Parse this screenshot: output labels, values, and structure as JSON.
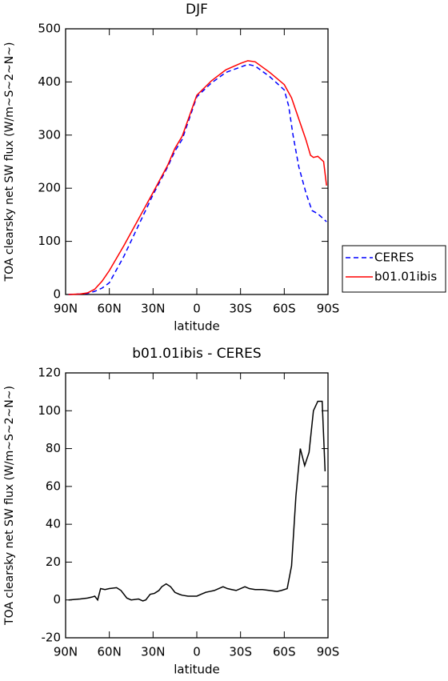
{
  "chart_data": [
    {
      "type": "line",
      "title": "DJF",
      "xlabel": "latitude",
      "ylabel": "TOA clearsky net SW flux (W/m~S~2~N~)",
      "xlim": [
        90,
        -90
      ],
      "xticks": [
        {
          "value": 90,
          "label": "90N"
        },
        {
          "value": 60,
          "label": "60N"
        },
        {
          "value": 30,
          "label": "30N"
        },
        0,
        {
          "value": -30,
          "label": "30S"
        },
        {
          "value": -60,
          "label": "60S"
        },
        {
          "value": -90,
          "label": "90S"
        }
      ],
      "ylim": [
        0,
        500
      ],
      "yticks": [
        0,
        100,
        200,
        300,
        400,
        500
      ],
      "legend": "outside-right",
      "series": [
        {
          "name": "CERES",
          "color": "#0000ff",
          "dash": "dashed",
          "x": [
            88,
            80,
            75,
            70,
            65,
            60,
            50,
            40,
            30,
            20,
            15,
            10,
            0,
            -10,
            -20,
            -30,
            -35,
            -40,
            -50,
            -60,
            -63,
            -66,
            -70,
            -75,
            -79,
            -83,
            -89
          ],
          "values": [
            0,
            1,
            2,
            6,
            12,
            22,
            72,
            130,
            188,
            240,
            270,
            292,
            372,
            398,
            418,
            428,
            433,
            430,
            410,
            385,
            355,
            300,
            240,
            190,
            158,
            152,
            137
          ]
        },
        {
          "name": "b01.01ibis",
          "color": "#ff0000",
          "dash": "solid",
          "x": [
            88,
            80,
            75,
            70,
            65,
            60,
            50,
            40,
            30,
            20,
            15,
            10,
            0,
            -10,
            -20,
            -30,
            -35,
            -40,
            -50,
            -60,
            -65,
            -70,
            -75,
            -78,
            -80,
            -83,
            -87,
            -89
          ],
          "values": [
            0,
            1,
            3,
            10,
            25,
            45,
            92,
            142,
            192,
            243,
            275,
            298,
            375,
            402,
            423,
            435,
            440,
            438,
            418,
            395,
            370,
            330,
            290,
            262,
            258,
            260,
            250,
            205
          ]
        }
      ]
    },
    {
      "type": "line",
      "title": "b01.01ibis - CERES",
      "xlabel": "latitude",
      "ylabel": "TOA clearsky net SW flux (W/m~S~2~N~)",
      "xlim": [
        90,
        -90
      ],
      "xticks": [
        {
          "value": 90,
          "label": "90N"
        },
        {
          "value": 60,
          "label": "60N"
        },
        {
          "value": 30,
          "label": "30N"
        },
        0,
        {
          "value": -30,
          "label": "30S"
        },
        {
          "value": -60,
          "label": "60S"
        },
        {
          "value": -90,
          "label": "90S"
        }
      ],
      "ylim": [
        -20,
        120
      ],
      "yticks": [
        -20,
        0,
        20,
        40,
        60,
        80,
        100,
        120
      ],
      "series": [
        {
          "color": "#000000",
          "x": [
            88,
            80,
            75,
            72,
            70,
            68,
            66,
            63,
            60,
            55,
            52,
            48,
            45,
            40,
            37,
            35,
            32,
            29,
            26,
            24,
            21,
            18,
            15,
            12,
            10,
            6,
            2,
            0,
            -3,
            -6,
            -9,
            -12,
            -15,
            -18,
            -21,
            -24,
            -27,
            -30,
            -33,
            -36,
            -40,
            -45,
            -50,
            -55,
            -58,
            -62,
            -65,
            -68,
            -71,
            -74,
            -77,
            -80,
            -83,
            -86,
            -88
          ],
          "values": [
            0,
            0.5,
            1,
            1.5,
            2,
            0,
            6,
            5.5,
            6,
            6.5,
            5,
            1,
            0,
            0.5,
            -0.5,
            0,
            3,
            3.5,
            5,
            7,
            8.5,
            7,
            4,
            3,
            2.5,
            2,
            2,
            2,
            3,
            4,
            4.5,
            5,
            6,
            7,
            6,
            5.5,
            5,
            6,
            7,
            6,
            5.5,
            5.5,
            5,
            4.5,
            5,
            6,
            18,
            55,
            80,
            71,
            78,
            100,
            105,
            105,
            68
          ]
        }
      ]
    }
  ]
}
